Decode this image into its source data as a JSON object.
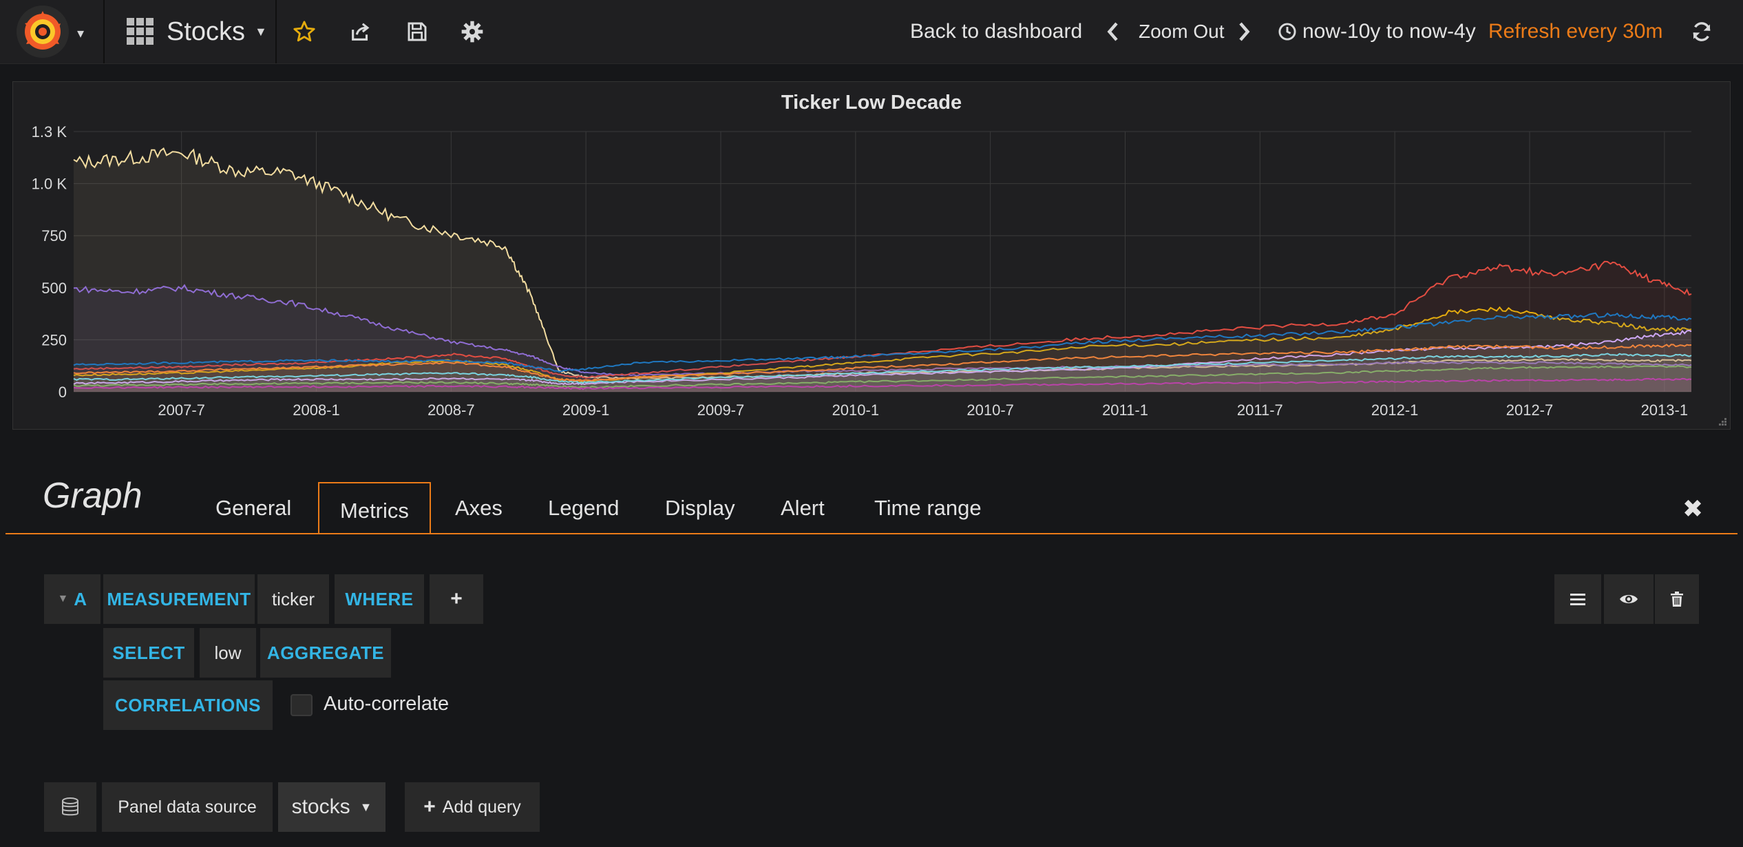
{
  "navbar": {
    "dashboard_title": "Stocks",
    "back_to_dashboard": "Back to dashboard",
    "zoom_out": "Zoom Out",
    "time_range": "now-10y to now-4y",
    "refresh": "Refresh every 30m",
    "icons": [
      "grafana-logo-icon",
      "dashboard-grid-icon",
      "star-icon",
      "share-icon",
      "save-icon",
      "gear-icon",
      "chevron-left-icon",
      "chevron-right-icon",
      "clock-icon",
      "refresh-icon"
    ],
    "accent_color": "#eb7b18"
  },
  "panel": {
    "title": "Ticker Low Decade"
  },
  "chart_data": {
    "type": "line",
    "title": "Ticker Low Decade",
    "x_tick_labels": [
      "2007-7",
      "2008-1",
      "2008-7",
      "2009-1",
      "2009-7",
      "2010-1",
      "2010-7",
      "2011-1",
      "2011-7",
      "2012-1",
      "2012-7",
      "2013-1"
    ],
    "y_tick_labels": [
      "0",
      "250",
      "500",
      "750",
      "1.0 K",
      "1.3 K"
    ],
    "ylim": [
      0,
      1250
    ],
    "xlim": [
      "2007-02",
      "2013-02"
    ],
    "grid": true,
    "fill": true,
    "series_count_estimate": 40,
    "x": [
      2007.1,
      2007.3,
      2007.5,
      2007.7,
      2007.9,
      2008.1,
      2008.3,
      2008.5,
      2008.7,
      2008.8,
      2008.9,
      2009.0,
      2009.2,
      2009.5,
      2009.8,
      2010.0,
      2010.3,
      2010.6,
      2010.9,
      2011.2,
      2011.5,
      2011.8,
      2012.0,
      2012.2,
      2012.4,
      2012.6,
      2012.8,
      2012.95,
      2013.1
    ],
    "series": [
      {
        "color": "#f2dca0",
        "values": [
          1100,
          1120,
          1150,
          1060,
          1050,
          950,
          830,
          760,
          700,
          450,
          100,
          70,
          65,
          70,
          80,
          90,
          95,
          100,
          110,
          120,
          125,
          130,
          140,
          150,
          150,
          155,
          150,
          150,
          150
        ]
      },
      {
        "color": "#8f6dd3",
        "values": [
          495,
          480,
          500,
          460,
          430,
          370,
          300,
          240,
          200,
          170,
          120,
          90,
          80,
          90,
          100,
          100,
          110,
          115,
          120,
          125,
          130,
          130,
          140,
          140,
          140,
          140,
          135,
          130,
          130
        ]
      },
      {
        "color": "#e24d42",
        "values": [
          110,
          115,
          120,
          130,
          135,
          150,
          160,
          180,
          160,
          120,
          80,
          70,
          90,
          120,
          150,
          170,
          200,
          230,
          260,
          280,
          310,
          330,
          370,
          550,
          600,
          560,
          620,
          540,
          470
        ]
      },
      {
        "color": "#e5ac0e",
        "values": [
          80,
          85,
          90,
          100,
          110,
          120,
          140,
          150,
          130,
          100,
          60,
          50,
          70,
          90,
          120,
          140,
          170,
          190,
          220,
          230,
          250,
          260,
          300,
          380,
          400,
          350,
          330,
          300,
          300
        ]
      },
      {
        "color": "#1f78c1",
        "values": [
          130,
          135,
          140,
          145,
          150,
          150,
          145,
          150,
          140,
          120,
          100,
          110,
          140,
          150,
          160,
          170,
          190,
          210,
          240,
          260,
          270,
          290,
          310,
          330,
          360,
          360,
          370,
          360,
          350
        ]
      },
      {
        "color": "#cfa8f6",
        "values": [
          40,
          45,
          50,
          55,
          60,
          60,
          60,
          65,
          60,
          55,
          40,
          40,
          50,
          60,
          70,
          80,
          90,
          100,
          110,
          130,
          160,
          180,
          200,
          210,
          210,
          220,
          240,
          270,
          290
        ]
      },
      {
        "color": "#70dbed",
        "values": [
          60,
          60,
          65,
          70,
          75,
          80,
          85,
          90,
          80,
          70,
          50,
          45,
          55,
          70,
          80,
          90,
          100,
          110,
          120,
          130,
          140,
          150,
          160,
          170,
          170,
          170,
          180,
          175,
          175
        ]
      },
      {
        "color": "#7eb26d",
        "values": [
          30,
          32,
          35,
          38,
          40,
          42,
          44,
          45,
          40,
          35,
          25,
          22,
          28,
          35,
          42,
          48,
          55,
          62,
          70,
          78,
          85,
          92,
          100,
          108,
          115,
          118,
          120,
          122,
          120
        ]
      },
      {
        "color": "#ef843c",
        "values": [
          90,
          95,
          100,
          110,
          115,
          125,
          130,
          140,
          120,
          90,
          60,
          55,
          70,
          85,
          100,
          115,
          130,
          150,
          165,
          175,
          185,
          190,
          200,
          215,
          220,
          210,
          215,
          220,
          225
        ]
      },
      {
        "color": "#ba43a9",
        "values": [
          20,
          21,
          22,
          23,
          24,
          25,
          26,
          27,
          25,
          22,
          18,
          16,
          19,
          22,
          25,
          28,
          31,
          34,
          37,
          40,
          43,
          46,
          49,
          52,
          55,
          56,
          58,
          60,
          60
        ]
      }
    ]
  },
  "editor": {
    "title": "Graph",
    "tabs": [
      "General",
      "Metrics",
      "Axes",
      "Legend",
      "Display",
      "Alert",
      "Time range"
    ],
    "active_tab": "Metrics"
  },
  "query": {
    "ref_id": "A",
    "measurement_kw": "MEASUREMENT",
    "measurement_val": "ticker",
    "where_kw": "WHERE",
    "add": "+",
    "select_kw": "SELECT",
    "select_val": "low",
    "aggregate_kw": "AGGREGATE",
    "correlations_kw": "CORRELATIONS",
    "auto_correlate": "Auto-correlate"
  },
  "datasource": {
    "label": "Panel data source",
    "selected": "stocks",
    "add_query": "Add query"
  }
}
